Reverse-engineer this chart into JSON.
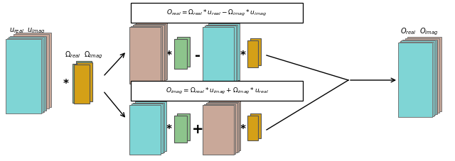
{
  "colors": {
    "pink": "#c9a899",
    "cyan": "#7fd5d5",
    "green": "#8dc48c",
    "yellow": "#d4a017",
    "white": "#ffffff"
  },
  "top_formula": "$O_{real} = \\Omega_{real} * u_{real} - \\Omega_{imag} * u_{imag}$",
  "bot_formula": "$O_{imag} = \\Omega_{real} * u_{imag} + \\Omega_{imag} * u_{real}$",
  "label_input": "$u_{real}$  $u_{imag}$",
  "label_kernel": "$\\Omega_{real}$  $\\Omega_{imag}$",
  "label_output": "$O_{real}$  $O_{imag}$"
}
